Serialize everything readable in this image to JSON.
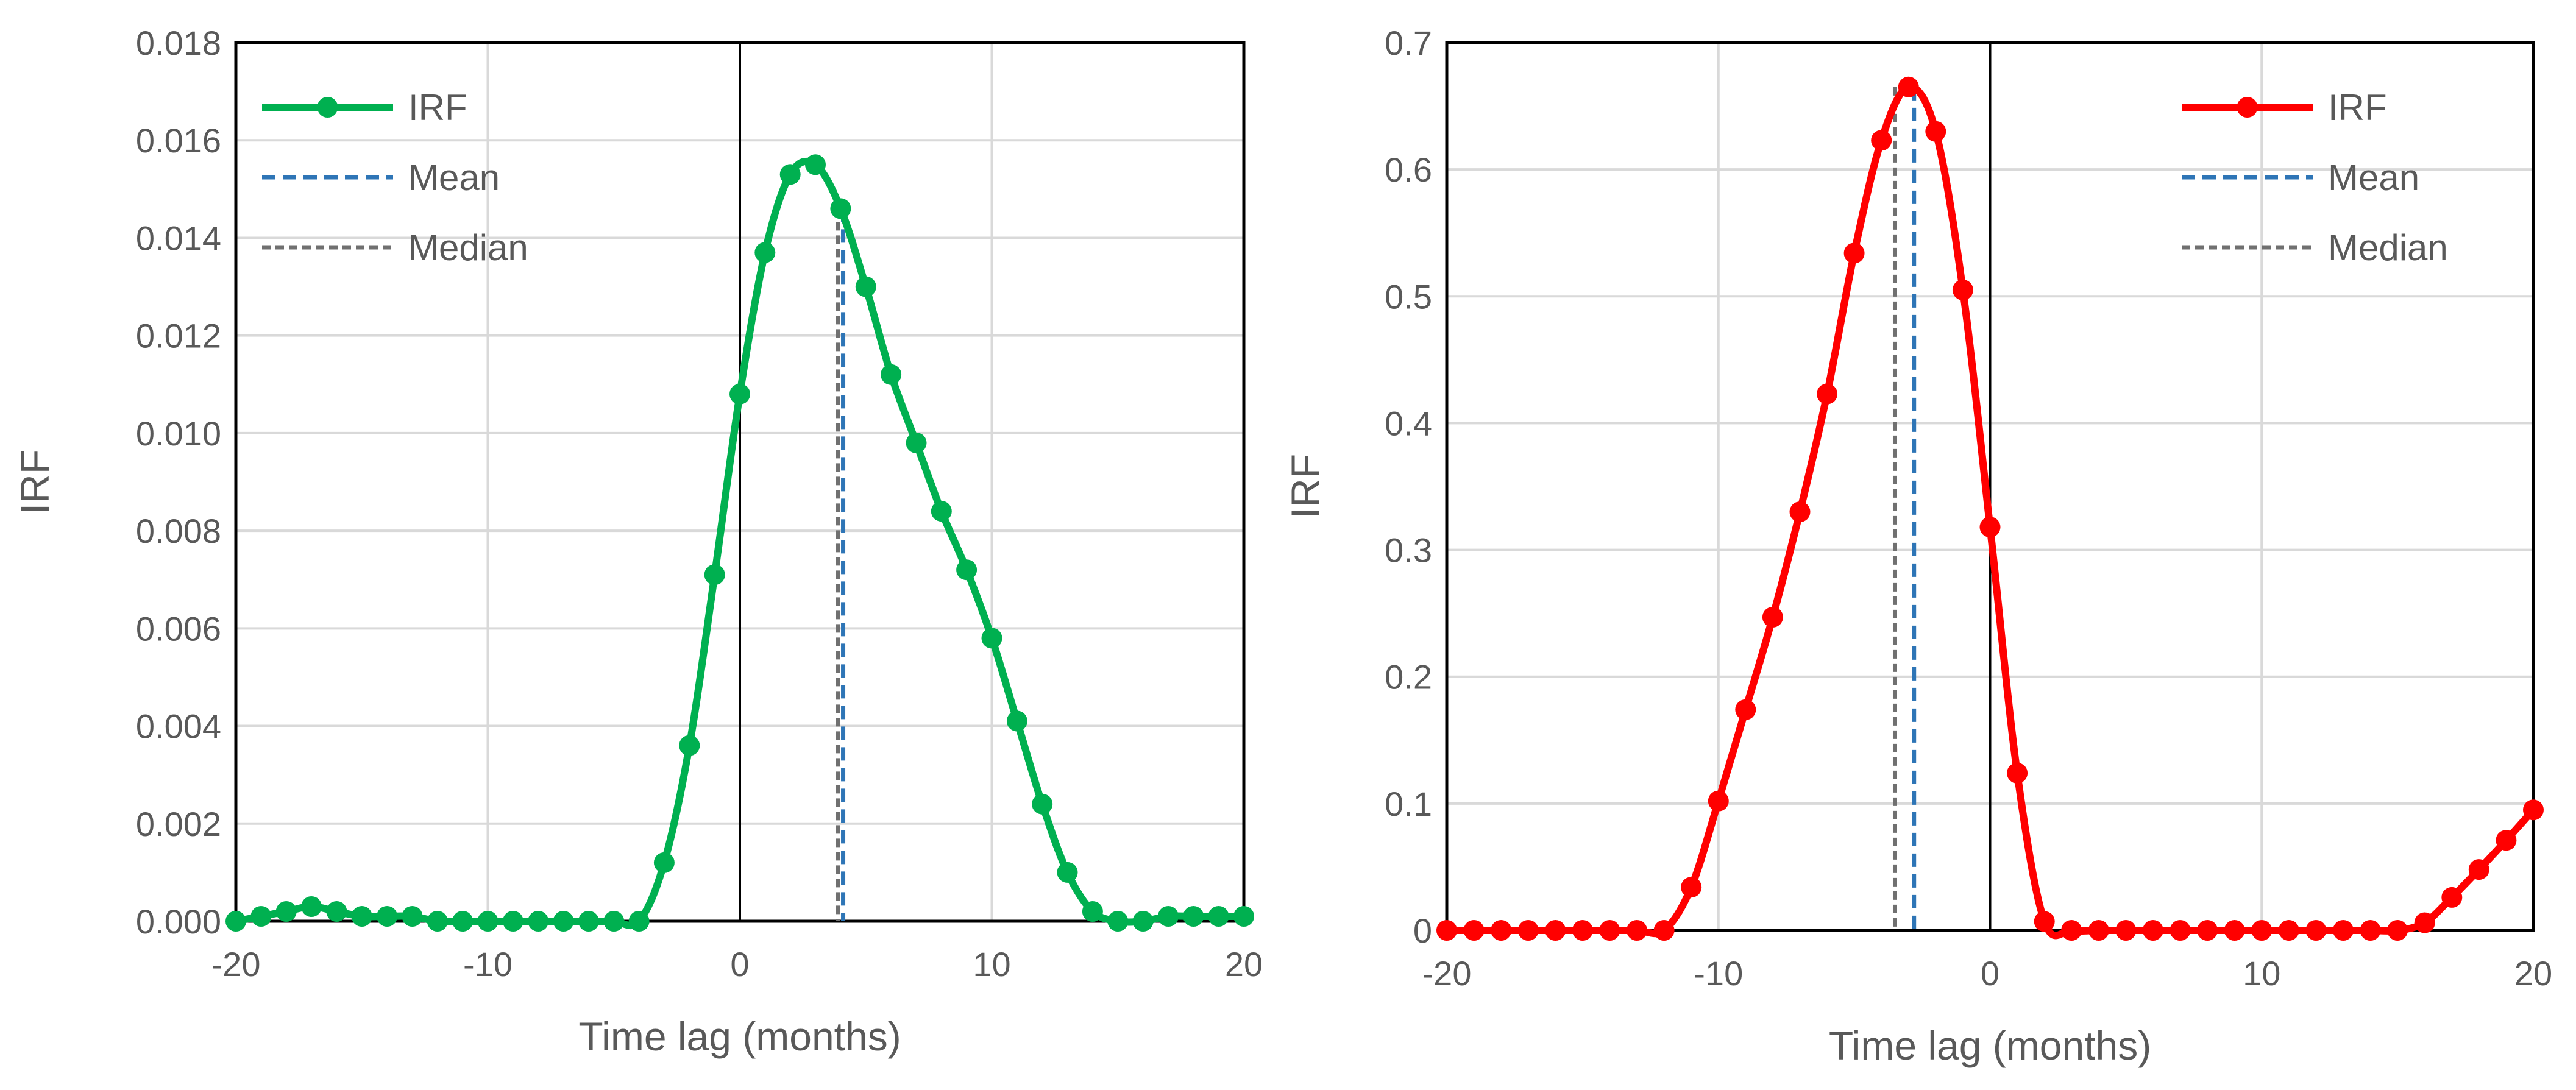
{
  "chart_data": [
    {
      "type": "line",
      "title": "",
      "xlabel": "Time lag (months)",
      "ylabel": "IRF",
      "xlim": [
        -20,
        20
      ],
      "ylim": [
        0,
        0.018
      ],
      "xticks": [
        -20,
        -10,
        0,
        10,
        20
      ],
      "xtick_labels": [
        "-20",
        "-10",
        "0",
        "10",
        "20"
      ],
      "yticks": [
        0,
        0.002,
        0.004,
        0.006,
        0.008,
        0.01,
        0.012,
        0.014,
        0.016,
        0.018
      ],
      "ytick_labels": [
        "0.000",
        "0.002",
        "0.004",
        "0.006",
        "0.008",
        "0.010",
        "0.012",
        "0.014",
        "0.016",
        "0.018"
      ],
      "grid": true,
      "legend_position": "top-left",
      "legend": [
        "IRF",
        "Mean",
        "Median"
      ],
      "colors": {
        "irf": "#00B050",
        "mean": "#2E75B6",
        "median": "#707070",
        "zero_line": "#000000"
      },
      "series": [
        {
          "name": "IRF",
          "x": [
            -20,
            -19,
            -18,
            -17,
            -16,
            -15,
            -14,
            -13,
            -12,
            -11,
            -10,
            -9,
            -8,
            -7,
            -6,
            -5,
            -4,
            -3,
            -2,
            -1,
            0,
            1,
            2,
            3,
            4,
            5,
            6,
            7,
            8,
            9,
            10,
            11,
            12,
            13,
            14,
            15,
            16,
            17,
            18,
            19,
            20
          ],
          "y": [
            0.0,
            0.0001,
            0.0002,
            0.0003,
            0.0002,
            0.0001,
            0.0001,
            0.0001,
            0.0,
            0.0,
            0.0,
            0.0,
            0.0,
            0.0,
            0.0,
            0.0,
            0.0,
            0.0012,
            0.0036,
            0.0071,
            0.0108,
            0.0137,
            0.0153,
            0.0155,
            0.0146,
            0.013,
            0.0112,
            0.0098,
            0.0084,
            0.0072,
            0.0058,
            0.0041,
            0.0024,
            0.001,
            0.0002,
            0.0,
            0.0,
            0.0001,
            0.0001,
            0.0001,
            0.0001
          ]
        }
      ],
      "mean_x": 4.1,
      "median_x": 3.9,
      "vline_ytop": 0.0146
    },
    {
      "type": "line",
      "title": "",
      "xlabel": "Time lag (months)",
      "ylabel": "IRF",
      "xlim": [
        -20,
        20
      ],
      "ylim": [
        0,
        0.7
      ],
      "xticks": [
        -20,
        -10,
        0,
        10,
        20
      ],
      "xtick_labels": [
        "-20",
        "-10",
        "0",
        "10",
        "20"
      ],
      "yticks": [
        0,
        0.1,
        0.2,
        0.3,
        0.4,
        0.5,
        0.6,
        0.7
      ],
      "ytick_labels": [
        "0",
        "0.1",
        "0.2",
        "0.3",
        "0.4",
        "0.5",
        "0.6",
        "0.7"
      ],
      "grid": true,
      "legend_position": "top-right",
      "legend": [
        "IRF",
        "Mean",
        "Median"
      ],
      "colors": {
        "irf": "#FF0000",
        "mean": "#2E75B6",
        "median": "#707070",
        "zero_line": "#000000"
      },
      "series": [
        {
          "name": "IRF",
          "x": [
            -20,
            -19,
            -18,
            -17,
            -16,
            -15,
            -14,
            -13,
            -12,
            -11,
            -10,
            -9,
            -8,
            -7,
            -6,
            -5,
            -4,
            -3,
            -2,
            -1,
            0,
            1,
            2,
            3,
            4,
            5,
            6,
            7,
            8,
            9,
            10,
            11,
            12,
            13,
            14,
            15,
            16,
            17,
            18,
            19,
            20
          ],
          "y": [
            0,
            0,
            0,
            0,
            0,
            0,
            0,
            0,
            0,
            0.034,
            0.102,
            0.174,
            0.247,
            0.33,
            0.423,
            0.534,
            0.623,
            0.665,
            0.63,
            0.505,
            0.318,
            0.124,
            0.007,
            0,
            0,
            0,
            0,
            0,
            0,
            0,
            0,
            0,
            0,
            0,
            0,
            0,
            0.006,
            0.026,
            0.048,
            0.071,
            0.095
          ]
        }
      ],
      "mean_x": -2.8,
      "median_x": -3.5,
      "vline_ytop": 0.665
    }
  ]
}
